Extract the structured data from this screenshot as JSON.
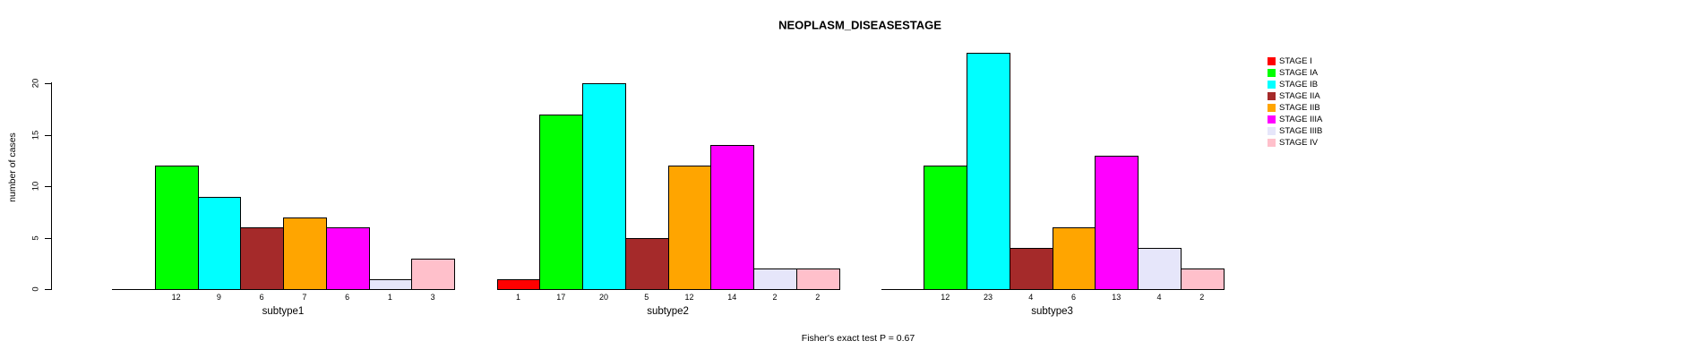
{
  "chart_data": {
    "type": "bar",
    "title": "NEOPLASM_DISEASESTAGE",
    "ylabel": "number of cases",
    "ylim": [
      0,
      20
    ],
    "yticks": [
      0,
      5,
      10,
      15,
      20
    ],
    "grid": false,
    "legend_position": "right-outside",
    "categories": [
      "subtype1",
      "subtype2",
      "subtype3"
    ],
    "series": [
      {
        "name": "STAGE I",
        "color": "#FF0000",
        "values": [
          0,
          1,
          0
        ]
      },
      {
        "name": "STAGE IA",
        "color": "#00FF00",
        "values": [
          12,
          17,
          12
        ]
      },
      {
        "name": "STAGE IB",
        "color": "#00FFFF",
        "values": [
          9,
          20,
          23
        ]
      },
      {
        "name": "STAGE IIA",
        "color": "#A52A2A",
        "values": [
          6,
          5,
          4
        ]
      },
      {
        "name": "STAGE IIB",
        "color": "#FFA500",
        "values": [
          7,
          12,
          6
        ]
      },
      {
        "name": "STAGE IIIA",
        "color": "#FF00FF",
        "values": [
          6,
          14,
          13
        ]
      },
      {
        "name": "STAGE IIIB",
        "color": "#E6E6FA",
        "values": [
          1,
          2,
          4
        ]
      },
      {
        "name": "STAGE IV",
        "color": "#FFC0CB",
        "values": [
          3,
          2,
          2
        ]
      }
    ],
    "value_labels_shown": true,
    "annotation": "Fisher's exact test P = 0.67"
  },
  "colors": {
    "background": "#FFFFFF",
    "axis": "#000000",
    "bar_border": "#000000",
    "text": "#000000"
  }
}
